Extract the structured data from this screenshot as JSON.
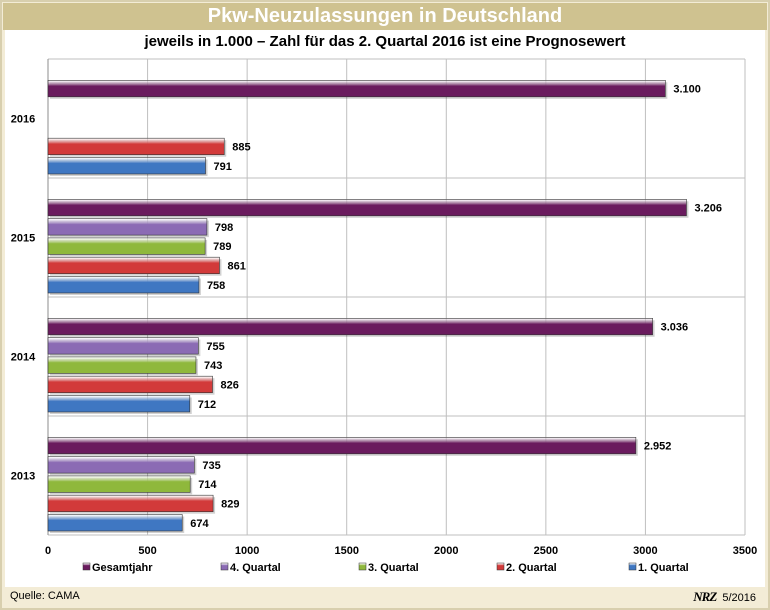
{
  "title": "Pkw-Neuzulassungen in Deutschland",
  "subtitle": "jeweils in 1.000 – Zahl für das 2. Quartal 2016 ist eine Prognosewert",
  "source": "Quelle: CAMA",
  "credit_logo": "NRZ",
  "credit_date": "5/2016",
  "colors": {
    "Gesamtjahr": "#6a1b5e",
    "4. Quartal": "#8b6bb4",
    "3. Quartal": "#8fb83c",
    "2. Quartal": "#d23a3a",
    "1. Quartal": "#3f77c2"
  },
  "chart_data": {
    "type": "bar",
    "orientation": "horizontal",
    "categories": [
      "2016",
      "2015",
      "2014",
      "2013"
    ],
    "series": [
      {
        "name": "Gesamtjahr",
        "values": [
          3100,
          3206,
          3036,
          2952
        ],
        "labels": [
          "3.100",
          "3.206",
          "3.036",
          "2.952"
        ]
      },
      {
        "name": "4. Quartal",
        "values": [
          null,
          798,
          755,
          735
        ],
        "labels": [
          "",
          "798",
          "755",
          "735"
        ]
      },
      {
        "name": "3. Quartal",
        "values": [
          null,
          789,
          743,
          714
        ],
        "labels": [
          "",
          "789",
          "743",
          "714"
        ]
      },
      {
        "name": "2. Quartal",
        "values": [
          885,
          861,
          826,
          829
        ],
        "labels": [
          "885",
          "861",
          "826",
          "829"
        ]
      },
      {
        "name": "1. Quartal",
        "values": [
          791,
          758,
          712,
          674
        ],
        "labels": [
          "791",
          "758",
          "712",
          "674"
        ]
      }
    ],
    "xlim": [
      0,
      3500
    ],
    "xticks": [
      0,
      500,
      1000,
      1500,
      2000,
      2500,
      3000,
      3500
    ],
    "grid": true,
    "legend_position": "bottom"
  }
}
